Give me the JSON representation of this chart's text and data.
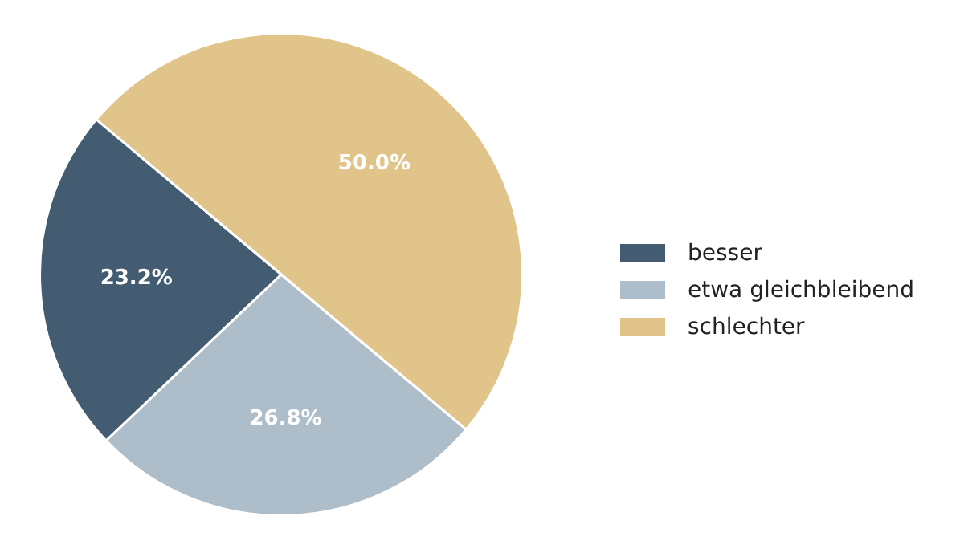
{
  "chart_data": {
    "type": "pie",
    "categories": [
      "besser",
      "etwa gleichbleibend",
      "schlechter"
    ],
    "values": [
      23.2,
      26.8,
      50.0
    ],
    "colors": [
      "#445c72",
      "#adbdc9",
      "#e0c48a"
    ],
    "value_labels": [
      "23.2%",
      "26.8%",
      "50.0%"
    ],
    "legend": "right"
  }
}
